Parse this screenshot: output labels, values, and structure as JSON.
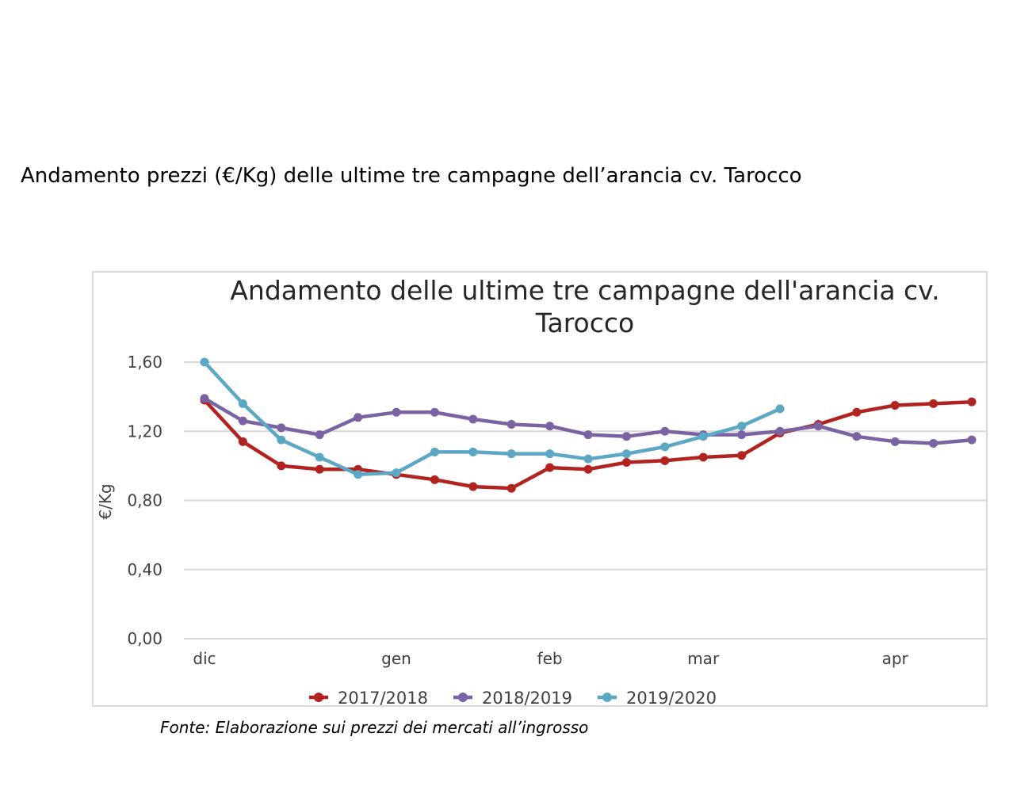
{
  "document": {
    "heading": "Andamento prezzi (€/Kg) delle ultime tre campagne dell’arancia cv. Tarocco",
    "source": "Fonte: Elaborazione sui prezzi dei mercati all’ingrosso"
  },
  "chart_data": {
    "type": "line",
    "title_lines": [
      "Andamento delle ultime tre campagne dell'arancia cv.",
      "Tarocco"
    ],
    "xlabel": "",
    "ylabel": "€/Kg",
    "ylim": [
      0,
      1.6
    ],
    "y_ticks": [
      "0,00",
      "0,40",
      "0,80",
      "1,20",
      "1,60"
    ],
    "y_tick_values": [
      0,
      0.4,
      0.8,
      1.2,
      1.6
    ],
    "x_points": 21,
    "x_month_labels": [
      {
        "label": "dic",
        "index": 0
      },
      {
        "label": "gen",
        "index": 5
      },
      {
        "label": "feb",
        "index": 9
      },
      {
        "label": "mar",
        "index": 13
      },
      {
        "label": "apr",
        "index": 18
      }
    ],
    "grid": true,
    "legend_position": "bottom",
    "series": [
      {
        "name": "2017/2018",
        "color": "#b0231f",
        "values": [
          1.38,
          1.14,
          1.0,
          0.98,
          0.98,
          0.95,
          0.92,
          0.88,
          0.87,
          0.99,
          0.98,
          1.02,
          1.03,
          1.05,
          1.06,
          1.19,
          1.24,
          1.31,
          1.35,
          1.36,
          1.37
        ]
      },
      {
        "name": "2018/2019",
        "color": "#7b62a3",
        "values": [
          1.39,
          1.26,
          1.22,
          1.18,
          1.28,
          1.31,
          1.31,
          1.27,
          1.24,
          1.23,
          1.18,
          1.17,
          1.2,
          1.18,
          1.18,
          1.2,
          1.23,
          1.17,
          1.14,
          1.13,
          1.15
        ]
      },
      {
        "name": "2019/2020",
        "color": "#5ba7c4",
        "values": [
          1.6,
          1.36,
          1.15,
          1.05,
          0.95,
          0.96,
          1.08,
          1.08,
          1.07,
          1.07,
          1.04,
          1.07,
          1.11,
          1.17,
          1.23,
          1.33,
          null,
          null,
          null,
          null,
          null
        ]
      }
    ]
  }
}
